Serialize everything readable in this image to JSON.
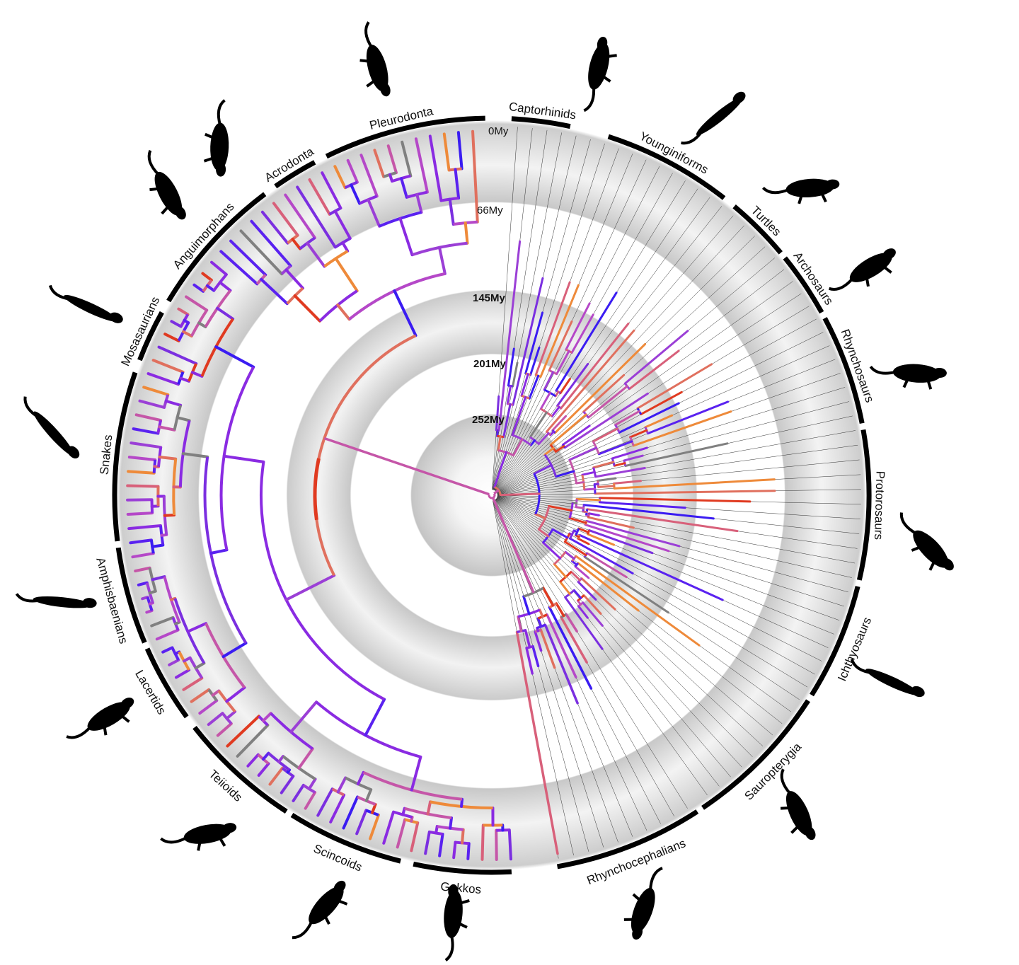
{
  "time_scale": {
    "t0": "0My",
    "t66": "66My",
    "t145": "145My",
    "t201": "201My",
    "t252": "252My"
  },
  "clades": [
    "Captorhinids",
    "Younginiforms",
    "Turtles",
    "Archosaurs",
    "Rhynchosaurs",
    "Protorosaurs",
    "Ichthyosaurs",
    "Sauropterygia",
    "Rhynchocephalians",
    "Gekkos",
    "Scincoids",
    "Teiioids",
    "Lacertids",
    "Amphisbaenians",
    "Snakes",
    "Mosasaurians",
    "Anguimorphans",
    "Acrodonta",
    "Pleurodonta"
  ],
  "silhouettes": [
    "captorhinid-silhouette",
    "younginiform-silhouette",
    "turtle-silhouette",
    "archosaur-silhouette",
    "rhynchosaur-silhouette",
    "protorosaur-silhouette",
    "ichthyosaur-silhouette",
    "sauropterygian-silhouette",
    "tuatara-silhouette",
    "gecko-silhouette",
    "skink-silhouette",
    "teiid-silhouette",
    "lacertid-silhouette",
    "amphisbaenian-silhouette",
    "snake-silhouette",
    "mosasaur-silhouette",
    "monitor-silhouette",
    "chameleon-silhouette",
    "iguana-silhouette"
  ],
  "colors": {
    "branch_palette": [
      "#8a2be2",
      "#9b3fd6",
      "#7b2fe0",
      "#5a22f0",
      "#b548c8",
      "#c556a8",
      "#d8607a",
      "#e0705e",
      "#ee8a3a",
      "#e03a20",
      "#3a1cf2"
    ],
    "missing_branch": "#808080",
    "tip_line": "#333333",
    "clade_bar": "#000000",
    "silhouette": "#000000"
  }
}
